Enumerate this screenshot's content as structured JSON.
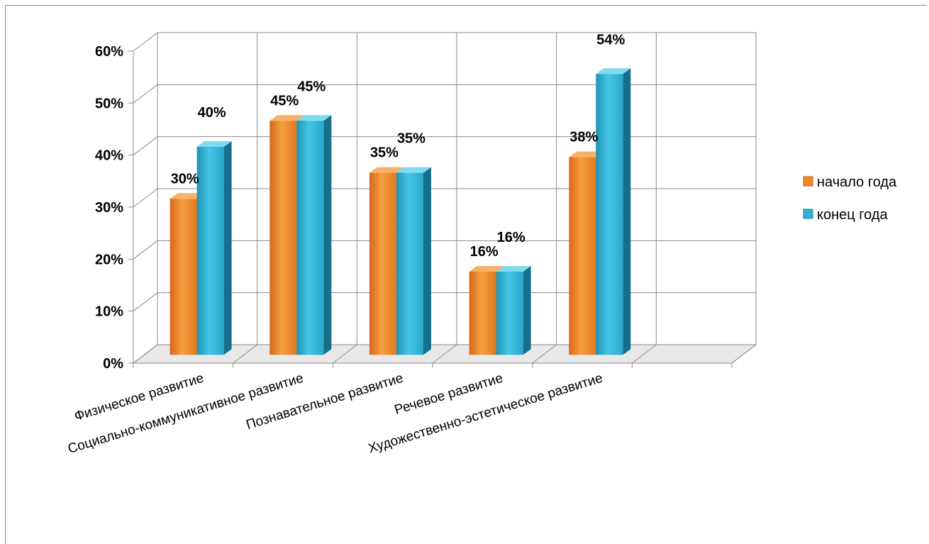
{
  "chart_data": {
    "type": "bar",
    "categories": [
      "Физическое развитие",
      "Социально-коммуникативное развитие",
      "Познавательное развитие",
      "Речевое развитие",
      "Художественно-эстетическое развитие"
    ],
    "series": [
      {
        "name": "начало года",
        "values": [
          30,
          45,
          35,
          16,
          38
        ],
        "labels": [
          "30%",
          "45%",
          "35%",
          "16%",
          "38%"
        ],
        "color": "#f08a24"
      },
      {
        "name": "конец года",
        "values": [
          40,
          45,
          35,
          16,
          54
        ],
        "labels": [
          "40%",
          "45%",
          "35%",
          "16%",
          "54%"
        ],
        "color": "#2eb3d3"
      }
    ],
    "ylim": [
      0,
      60
    ],
    "yticks": [
      "0%",
      "10%",
      "20%",
      "30%",
      "40%",
      "50%",
      "60%"
    ],
    "grid": true,
    "legend_position": "right",
    "style": "3d-column"
  }
}
